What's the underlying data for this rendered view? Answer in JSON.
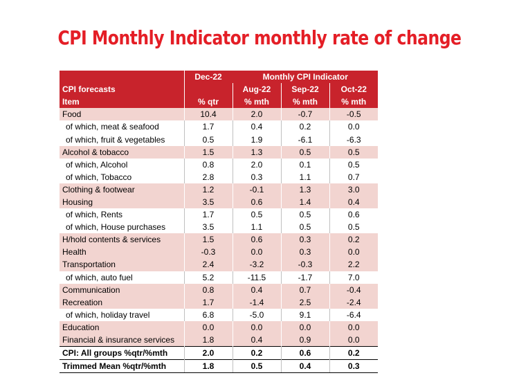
{
  "title": "CPI Monthly Indicator monthly rate of change",
  "header": {
    "dec_label": "Dec-22",
    "monthly_label": "Monthly CPI Indicator",
    "forecasts_label": "CPI forecasts",
    "aug_label": "Aug-22",
    "sep_label": "Sep-22",
    "oct_label": "Oct-22",
    "item_label": "Item",
    "qtr_unit": "% qtr",
    "mth_unit": "% mth"
  },
  "rows": [
    {
      "item": "Food",
      "dec": "10.4",
      "aug": "2.0",
      "sep": "-0.7",
      "oct": "-0.5"
    },
    {
      "item": "of which, meat & seafood",
      "dec": "1.7",
      "aug": "0.4",
      "sep": "0.2",
      "oct": "0.0"
    },
    {
      "item": "of which, fruit & vegetables",
      "dec": "0.5",
      "aug": "1.9",
      "sep": "-6.1",
      "oct": "-6.3"
    },
    {
      "item": "Alcohol & tobacco",
      "dec": "1.5",
      "aug": "1.3",
      "sep": "0.5",
      "oct": "0.5"
    },
    {
      "item": "of which, Alcohol",
      "dec": "0.8",
      "aug": "2.0",
      "sep": "0.1",
      "oct": "0.5"
    },
    {
      "item": "of which, Tobacco",
      "dec": "2.8",
      "aug": "0.3",
      "sep": "1.1",
      "oct": "0.7"
    },
    {
      "item": "Clothing & footwear",
      "dec": "1.2",
      "aug": "-0.1",
      "sep": "1.3",
      "oct": "3.0"
    },
    {
      "item": "Housing",
      "dec": "3.5",
      "aug": "0.6",
      "sep": "1.4",
      "oct": "0.4"
    },
    {
      "item": "of which, Rents",
      "dec": "1.7",
      "aug": "0.5",
      "sep": "0.5",
      "oct": "0.6"
    },
    {
      "item": "of which, House purchases",
      "dec": "3.5",
      "aug": "1.1",
      "sep": "0.5",
      "oct": "0.5"
    },
    {
      "item": "H/hold contents & services",
      "dec": "1.5",
      "aug": "0.6",
      "sep": "0.3",
      "oct": "0.2"
    },
    {
      "item": "Health",
      "dec": "-0.3",
      "aug": "0.0",
      "sep": "0.3",
      "oct": "0.0"
    },
    {
      "item": "Transportation",
      "dec": "2.4",
      "aug": "-3.2",
      "sep": "-0.3",
      "oct": "2.2"
    },
    {
      "item": "of which, auto fuel",
      "dec": "5.2",
      "aug": "-11.5",
      "sep": "-1.7",
      "oct": "7.0"
    },
    {
      "item": "Communication",
      "dec": "0.8",
      "aug": "0.4",
      "sep": "0.7",
      "oct": "-0.4"
    },
    {
      "item": "Recreation",
      "dec": "1.7",
      "aug": "-1.4",
      "sep": "2.5",
      "oct": "-2.4"
    },
    {
      "item": "of which, holiday travel",
      "dec": "6.8",
      "aug": "-5.0",
      "sep": "9.1",
      "oct": "-6.4"
    },
    {
      "item": "Education",
      "dec": "0.0",
      "aug": "0.0",
      "sep": "0.0",
      "oct": "0.0"
    },
    {
      "item": "Financial & insurance services",
      "dec": "1.8",
      "aug": "0.4",
      "sep": "0.9",
      "oct": "0.0"
    }
  ],
  "totals": [
    {
      "item": "CPI: All groups %qtr/%mth",
      "dec": "2.0",
      "aug": "0.2",
      "sep": "0.6",
      "oct": "0.2"
    },
    {
      "item": "Trimmed Mean  %qtr/%mth",
      "dec": "1.8",
      "aug": "0.5",
      "sep": "0.4",
      "oct": "0.3"
    }
  ],
  "colors": {
    "title": "#e41e26",
    "header_bg": "#c8232c",
    "shade_bg": "#f2d4d0"
  }
}
